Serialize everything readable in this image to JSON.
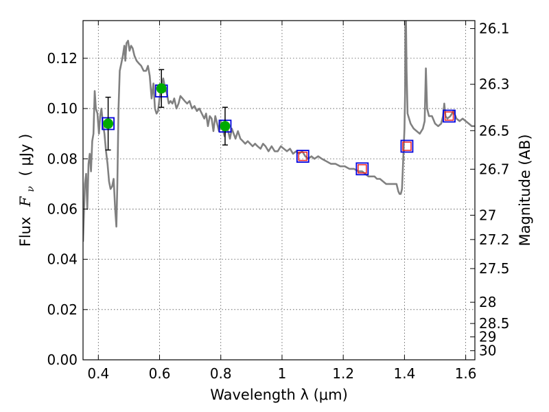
{
  "chart_data": {
    "type": "line",
    "xlabel": "Wavelength  λ (μm)",
    "ylabel_prefix": "Flux",
    "ylabel_symbol": "F",
    "ylabel_subscript": "ν",
    "ylabel_unit": "( μJy )",
    "y2label": "Magnitude (AB)",
    "xlim": [
      0.35,
      1.63
    ],
    "ylim": [
      0.0,
      0.135
    ],
    "grid": true,
    "x_ticks": [
      {
        "value": 0.4,
        "label": "0.4"
      },
      {
        "value": 0.6,
        "label": "0.6"
      },
      {
        "value": 0.8,
        "label": "0.8"
      },
      {
        "value": 1.0,
        "label": "1"
      },
      {
        "value": 1.2,
        "label": "1.2"
      },
      {
        "value": 1.4,
        "label": "1.4"
      },
      {
        "value": 1.6,
        "label": "1.6"
      }
    ],
    "y_ticks": [
      {
        "value": 0.0,
        "label": "0.00"
      },
      {
        "value": 0.02,
        "label": "0.02"
      },
      {
        "value": 0.04,
        "label": "0.04"
      },
      {
        "value": 0.06,
        "label": "0.06"
      },
      {
        "value": 0.08,
        "label": "0.08"
      },
      {
        "value": 0.1,
        "label": "0.10"
      },
      {
        "value": 0.12,
        "label": "0.12"
      }
    ],
    "y2_ticks": [
      {
        "mag": 26.1,
        "label": "26.1"
      },
      {
        "mag": 26.3,
        "label": "26.3"
      },
      {
        "mag": 26.5,
        "label": "26.5"
      },
      {
        "mag": 26.7,
        "label": "26.7"
      },
      {
        "mag": 27.0,
        "label": "27"
      },
      {
        "mag": 27.2,
        "label": "27.2"
      },
      {
        "mag": 27.5,
        "label": "27.5"
      },
      {
        "mag": 28.0,
        "label": "28"
      },
      {
        "mag": 28.5,
        "label": "28.5"
      },
      {
        "mag": 29.0,
        "label": "29"
      },
      {
        "mag": 30.0,
        "label": "30"
      }
    ],
    "spectrum": {
      "color": "#808080",
      "points": [
        [
          0.35,
          0.047
        ],
        [
          0.356,
          0.07
        ],
        [
          0.36,
          0.074
        ],
        [
          0.364,
          0.06
        ],
        [
          0.368,
          0.078
        ],
        [
          0.372,
          0.082
        ],
        [
          0.376,
          0.075
        ],
        [
          0.38,
          0.087
        ],
        [
          0.384,
          0.09
        ],
        [
          0.388,
          0.107
        ],
        [
          0.392,
          0.1
        ],
        [
          0.397,
          0.098
        ],
        [
          0.402,
          0.09
        ],
        [
          0.406,
          0.097
        ],
        [
          0.41,
          0.1
        ],
        [
          0.415,
          0.094
        ],
        [
          0.42,
          0.09
        ],
        [
          0.425,
          0.083
        ],
        [
          0.43,
          0.078
        ],
        [
          0.435,
          0.071
        ],
        [
          0.44,
          0.068
        ],
        [
          0.445,
          0.069
        ],
        [
          0.45,
          0.072
        ],
        [
          0.455,
          0.06
        ],
        [
          0.459,
          0.053
        ],
        [
          0.462,
          0.07
        ],
        [
          0.466,
          0.1
        ],
        [
          0.47,
          0.115
        ],
        [
          0.475,
          0.118
        ],
        [
          0.48,
          0.121
        ],
        [
          0.485,
          0.125
        ],
        [
          0.488,
          0.119
        ],
        [
          0.492,
          0.126
        ],
        [
          0.497,
          0.127
        ],
        [
          0.502,
          0.123
        ],
        [
          0.507,
          0.125
        ],
        [
          0.512,
          0.124
        ],
        [
          0.518,
          0.121
        ],
        [
          0.525,
          0.119
        ],
        [
          0.532,
          0.118
        ],
        [
          0.54,
          0.117
        ],
        [
          0.548,
          0.115
        ],
        [
          0.556,
          0.115
        ],
        [
          0.562,
          0.117
        ],
        [
          0.568,
          0.113
        ],
        [
          0.574,
          0.104
        ],
        [
          0.58,
          0.11
        ],
        [
          0.585,
          0.1
        ],
        [
          0.59,
          0.098
        ],
        [
          0.595,
          0.099
        ],
        [
          0.6,
          0.104
        ],
        [
          0.606,
          0.109
        ],
        [
          0.612,
          0.112
        ],
        [
          0.618,
          0.108
        ],
        [
          0.624,
          0.106
        ],
        [
          0.63,
          0.102
        ],
        [
          0.636,
          0.103
        ],
        [
          0.642,
          0.102
        ],
        [
          0.648,
          0.104
        ],
        [
          0.655,
          0.1
        ],
        [
          0.662,
          0.102
        ],
        [
          0.668,
          0.105
        ],
        [
          0.675,
          0.104
        ],
        [
          0.682,
          0.103
        ],
        [
          0.69,
          0.102
        ],
        [
          0.698,
          0.103
        ],
        [
          0.706,
          0.1
        ],
        [
          0.714,
          0.101
        ],
        [
          0.722,
          0.099
        ],
        [
          0.73,
          0.1
        ],
        [
          0.738,
          0.098
        ],
        [
          0.746,
          0.096
        ],
        [
          0.752,
          0.098
        ],
        [
          0.758,
          0.093
        ],
        [
          0.764,
          0.097
        ],
        [
          0.77,
          0.096
        ],
        [
          0.776,
          0.091
        ],
        [
          0.782,
          0.097
        ],
        [
          0.788,
          0.094
        ],
        [
          0.794,
          0.091
        ],
        [
          0.8,
          0.095
        ],
        [
          0.806,
          0.092
        ],
        [
          0.812,
          0.089
        ],
        [
          0.818,
          0.093
        ],
        [
          0.824,
          0.091
        ],
        [
          0.83,
          0.088
        ],
        [
          0.836,
          0.092
        ],
        [
          0.842,
          0.09
        ],
        [
          0.848,
          0.088
        ],
        [
          0.856,
          0.091
        ],
        [
          0.864,
          0.088
        ],
        [
          0.872,
          0.087
        ],
        [
          0.88,
          0.086
        ],
        [
          0.888,
          0.087
        ],
        [
          0.896,
          0.086
        ],
        [
          0.904,
          0.085
        ],
        [
          0.912,
          0.086
        ],
        [
          0.92,
          0.085
        ],
        [
          0.93,
          0.084
        ],
        [
          0.938,
          0.086
        ],
        [
          0.946,
          0.085
        ],
        [
          0.956,
          0.083
        ],
        [
          0.966,
          0.085
        ],
        [
          0.976,
          0.083
        ],
        [
          0.986,
          0.083
        ],
        [
          0.996,
          0.085
        ],
        [
          1.006,
          0.084
        ],
        [
          1.016,
          0.083
        ],
        [
          1.026,
          0.084
        ],
        [
          1.036,
          0.082
        ],
        [
          1.046,
          0.083
        ],
        [
          1.056,
          0.082
        ],
        [
          1.066,
          0.083
        ],
        [
          1.076,
          0.081
        ],
        [
          1.086,
          0.08
        ],
        [
          1.096,
          0.081
        ],
        [
          1.106,
          0.08
        ],
        [
          1.118,
          0.081
        ],
        [
          1.13,
          0.08
        ],
        [
          1.145,
          0.079
        ],
        [
          1.16,
          0.078
        ],
        [
          1.175,
          0.078
        ],
        [
          1.19,
          0.077
        ],
        [
          1.205,
          0.077
        ],
        [
          1.22,
          0.076
        ],
        [
          1.235,
          0.076
        ],
        [
          1.25,
          0.075
        ],
        [
          1.262,
          0.075
        ],
        [
          1.272,
          0.074
        ],
        [
          1.282,
          0.073
        ],
        [
          1.292,
          0.073
        ],
        [
          1.302,
          0.073
        ],
        [
          1.31,
          0.072
        ],
        [
          1.32,
          0.072
        ],
        [
          1.33,
          0.071
        ],
        [
          1.34,
          0.07
        ],
        [
          1.352,
          0.07
        ],
        [
          1.364,
          0.07
        ],
        [
          1.374,
          0.07
        ],
        [
          1.38,
          0.067
        ],
        [
          1.384,
          0.066
        ],
        [
          1.388,
          0.066
        ],
        [
          1.392,
          0.068
        ],
        [
          1.396,
          0.08
        ],
        [
          1.4,
          0.092
        ],
        [
          1.402,
          0.106
        ],
        [
          1.403,
          0.135
        ],
        [
          1.405,
          0.135
        ],
        [
          1.407,
          0.115
        ],
        [
          1.41,
          0.098
        ],
        [
          1.42,
          0.094
        ],
        [
          1.43,
          0.092
        ],
        [
          1.44,
          0.091
        ],
        [
          1.45,
          0.09
        ],
        [
          1.46,
          0.092
        ],
        [
          1.466,
          0.095
        ],
        [
          1.47,
          0.116
        ],
        [
          1.474,
          0.1
        ],
        [
          1.48,
          0.097
        ],
        [
          1.49,
          0.097
        ],
        [
          1.5,
          0.094
        ],
        [
          1.51,
          0.093
        ],
        [
          1.52,
          0.094
        ],
        [
          1.526,
          0.097
        ],
        [
          1.53,
          0.102
        ],
        [
          1.534,
          0.097
        ],
        [
          1.54,
          0.096
        ],
        [
          1.55,
          0.097
        ],
        [
          1.56,
          0.099
        ],
        [
          1.57,
          0.096
        ],
        [
          1.58,
          0.095
        ],
        [
          1.59,
          0.096
        ],
        [
          1.6,
          0.095
        ],
        [
          1.61,
          0.094
        ],
        [
          1.62,
          0.093
        ],
        [
          1.63,
          0.093
        ]
      ]
    },
    "observed": {
      "marker_color": "#00aa00",
      "points": [
        {
          "x": 0.432,
          "y": 0.094,
          "err": 0.0105
        },
        {
          "x": 0.606,
          "y": 0.108,
          "err": 0.0075
        },
        {
          "x": 0.814,
          "y": 0.093,
          "err": 0.0075
        }
      ]
    },
    "model_boxes": {
      "outer_color": "#0000dd",
      "inner_color": "#ee2222",
      "points": [
        {
          "x": 0.432,
          "y": 0.094,
          "inner": false
        },
        {
          "x": 0.606,
          "y": 0.107,
          "inner": false
        },
        {
          "x": 0.814,
          "y": 0.093,
          "inner": false
        },
        {
          "x": 1.068,
          "y": 0.081,
          "inner": true
        },
        {
          "x": 1.262,
          "y": 0.076,
          "inner": true
        },
        {
          "x": 1.408,
          "y": 0.085,
          "inner": true
        },
        {
          "x": 1.546,
          "y": 0.097,
          "inner": true
        }
      ]
    }
  }
}
